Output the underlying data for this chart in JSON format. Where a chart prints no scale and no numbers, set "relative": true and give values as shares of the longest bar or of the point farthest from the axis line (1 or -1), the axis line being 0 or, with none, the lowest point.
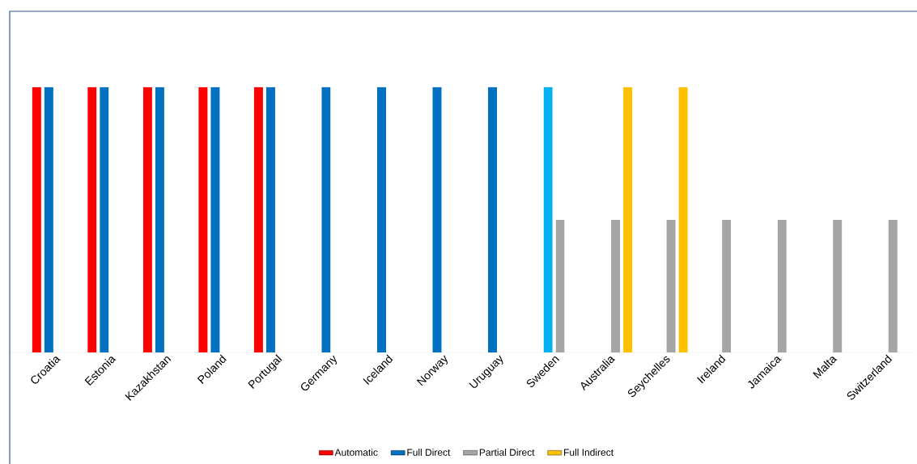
{
  "chart_data": {
    "type": "bar",
    "relative": true,
    "legend": "bottom",
    "categories": [
      "Croatia",
      "Estonia",
      "Kazakhstan",
      "Poland",
      "Portugal",
      "Germany",
      "Iceland",
      "Norway",
      "Uruguay",
      "Sweden",
      "Australia",
      "Seychelles",
      "Ireland",
      "Jamaica",
      "Malta",
      "Switzerland"
    ],
    "series": [
      {
        "name": "Automatic",
        "color": "#ff0000",
        "values": [
          1,
          1,
          1,
          1,
          1,
          null,
          null,
          null,
          null,
          null,
          null,
          null,
          null,
          null,
          null,
          null
        ]
      },
      {
        "name": "Full Direct",
        "color": "#0070c0",
        "colors": [
          "#0070c0",
          "#0070c0",
          "#0070c0",
          "#0070c0",
          "#0070c0",
          "#0070c0",
          "#0070c0",
          "#0070c0",
          "#0070c0",
          "#00b0f0",
          null,
          null,
          null,
          null,
          null,
          null
        ],
        "values": [
          1,
          1,
          1,
          1,
          1,
          1,
          1,
          1,
          1,
          1,
          null,
          null,
          null,
          null,
          null,
          null
        ]
      },
      {
        "name": "Partial Direct",
        "color": "#a5a5a5",
        "values": [
          null,
          null,
          null,
          null,
          null,
          null,
          null,
          null,
          null,
          0.5,
          0.5,
          0.5,
          0.5,
          0.5,
          0.5,
          0.5
        ]
      },
      {
        "name": "Full Indirect",
        "color": "#ffc000",
        "values": [
          null,
          null,
          null,
          null,
          null,
          null,
          null,
          null,
          null,
          null,
          1,
          1,
          null,
          null,
          null,
          null
        ]
      }
    ]
  }
}
